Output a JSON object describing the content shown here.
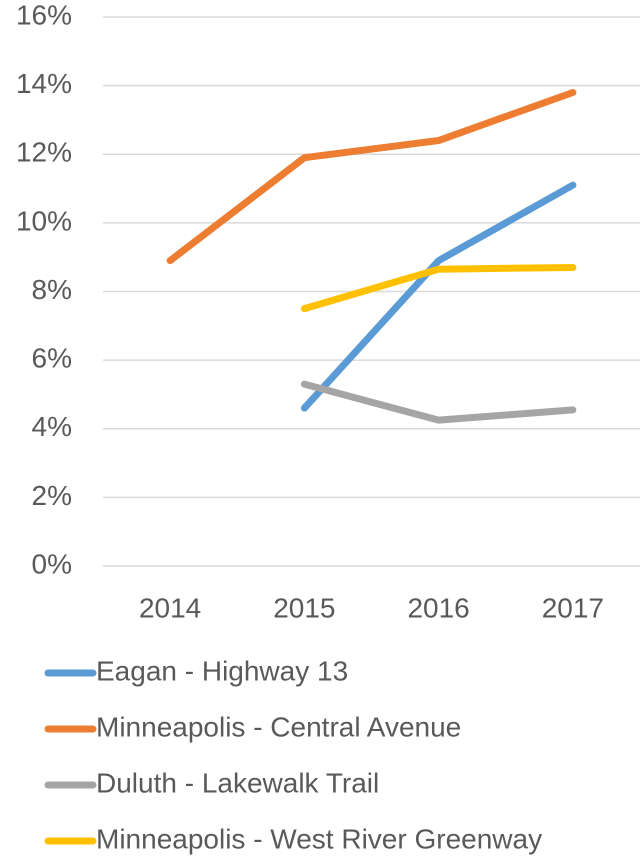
{
  "chart_data": {
    "type": "line",
    "categories": [
      "2014",
      "2015",
      "2016",
      "2017"
    ],
    "series": [
      {
        "name": "Eagan - Highway 13",
        "color": "#5b9bd5",
        "values": [
          null,
          4.6,
          8.9,
          11.1
        ]
      },
      {
        "name": "Minneapolis - Central Avenue",
        "color": "#ed7d31",
        "values": [
          8.9,
          11.9,
          12.4,
          13.8
        ]
      },
      {
        "name": "Duluth - Lakewalk Trail",
        "color": "#a5a5a5",
        "values": [
          null,
          5.3,
          4.25,
          4.55
        ]
      },
      {
        "name": "Minneapolis - West River Greenway",
        "color": "#ffc000",
        "values": [
          null,
          7.5,
          8.65,
          8.7
        ]
      }
    ],
    "ylim": [
      0,
      16
    ],
    "yticks": [
      {
        "value": 0,
        "label": "0%"
      },
      {
        "value": 2,
        "label": "2%"
      },
      {
        "value": 4,
        "label": "4%"
      },
      {
        "value": 6,
        "label": "6%"
      },
      {
        "value": 8,
        "label": "8%"
      },
      {
        "value": 10,
        "label": "10%"
      },
      {
        "value": 12,
        "label": "12%"
      },
      {
        "value": 14,
        "label": "14%"
      },
      {
        "value": 16,
        "label": "16%"
      }
    ],
    "grid": true
  }
}
